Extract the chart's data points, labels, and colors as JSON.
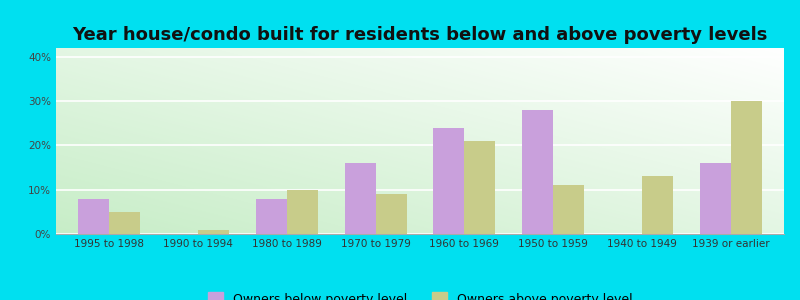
{
  "title": "Year house/condo built for residents below and above poverty levels",
  "categories": [
    "1995 to 1998",
    "1990 to 1994",
    "1980 to 1989",
    "1970 to 1979",
    "1960 to 1969",
    "1950 to 1959",
    "1940 to 1949",
    "1939 or earlier"
  ],
  "below_poverty": [
    8,
    0,
    8,
    16,
    24,
    28,
    0,
    16
  ],
  "above_poverty": [
    5,
    1,
    10,
    9,
    21,
    11,
    13,
    30
  ],
  "below_color": "#c9a0dc",
  "above_color": "#c8cc8a",
  "bar_width": 0.35,
  "ylim": [
    0,
    42
  ],
  "yticks": [
    0,
    10,
    20,
    30,
    40
  ],
  "ytick_labels": [
    "0%",
    "10%",
    "20%",
    "30%",
    "40%"
  ],
  "legend_below": "Owners below poverty level",
  "legend_above": "Owners above poverty level",
  "outer_bg": "#00e0f0",
  "title_fontsize": 13,
  "axis_fontsize": 7.5,
  "legend_fontsize": 9
}
